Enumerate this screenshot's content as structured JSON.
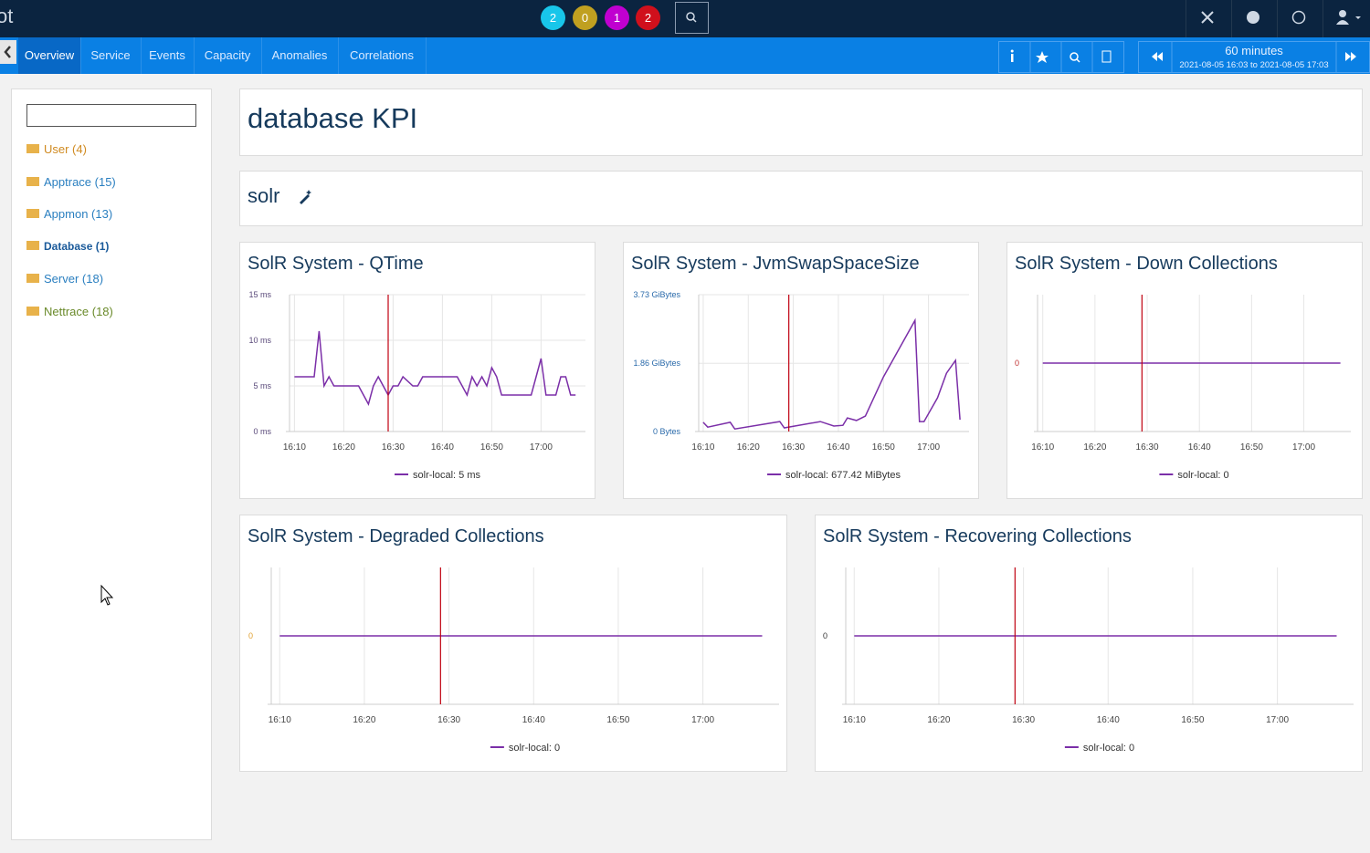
{
  "header": {
    "logo": "ot",
    "badges": [
      "2",
      "0",
      "1",
      "2"
    ]
  },
  "nav": {
    "tabs": [
      "Overview",
      "Service",
      "Events",
      "Capacity",
      "Anomalies",
      "Correlations"
    ],
    "active": 0,
    "time_range": {
      "duration": "60 minutes",
      "span": "2021-08-05 16:03 to 2021-08-05 17:03"
    }
  },
  "sidebar": {
    "items": [
      "User (4)",
      "Apptrace (15)",
      "Appmon (13)",
      "Database (1)",
      "Server (18)",
      "Nettrace (18)"
    ]
  },
  "page": {
    "title": "database KPI",
    "section": "solr"
  },
  "panels": [
    {
      "title": "SolR System - QTime",
      "type": "line",
      "color": "#7b2fa8",
      "tick_color": "#5a4a7a",
      "x": [
        "16:10",
        "16:11",
        "16:12",
        "16:13",
        "16:14",
        "16:15",
        "16:16",
        "16:17",
        "16:18",
        "16:20",
        "16:22",
        "16:23",
        "16:24",
        "16:25",
        "16:26",
        "16:27",
        "16:28",
        "16:29",
        "16:30",
        "16:31",
        "16:32",
        "16:34",
        "16:35",
        "16:36",
        "16:40",
        "16:42",
        "16:43",
        "16:44",
        "16:45",
        "16:46",
        "16:47",
        "16:48",
        "16:49",
        "16:50",
        "16:51",
        "16:52",
        "16:54",
        "16:57",
        "16:58",
        "16:59",
        "17:00",
        "17:01",
        "17:03",
        "17:04",
        "17:05",
        "17:06",
        "17:07"
      ],
      "values": [
        6,
        6,
        6,
        6,
        6,
        11,
        5,
        6,
        5,
        5,
        5,
        5,
        4,
        3,
        5,
        6,
        5,
        4,
        5,
        5,
        6,
        5,
        5,
        6,
        6,
        6,
        6,
        5,
        4,
        6,
        5,
        6,
        5,
        7,
        6,
        4,
        4,
        4,
        4,
        6,
        8,
        4,
        4,
        6,
        6,
        4,
        4
      ],
      "xlim": [
        "16:09",
        "17:09"
      ],
      "ylim": [
        0,
        15
      ],
      "xticks": [
        "16:10",
        "16:20",
        "16:30",
        "16:40",
        "16:50",
        "17:00"
      ],
      "yticks": [
        {
          "value": 0,
          "label": "0 ms"
        },
        {
          "value": 5,
          "label": "5 ms"
        },
        {
          "value": 10,
          "label": "10 ms"
        },
        {
          "value": 15,
          "label": "15 ms"
        }
      ],
      "marker": "16:29",
      "legend": "solr-local: 5 ms"
    },
    {
      "title": "SolR System - JvmSwapSpaceSize",
      "type": "line",
      "color": "#7b2fa8",
      "tick_color": "#2a6aaa",
      "x": [
        "16:10",
        "16:11",
        "16:16",
        "16:17",
        "16:27",
        "16:28",
        "16:36",
        "16:39",
        "16:41",
        "16:42",
        "16:44",
        "16:46",
        "16:50",
        "16:57",
        "16:58",
        "16:59",
        "17:02",
        "17:04",
        "17:06",
        "17:07"
      ],
      "values": [
        0.25,
        0.12,
        0.25,
        0.07,
        0.27,
        0.1,
        0.27,
        0.15,
        0.17,
        0.37,
        0.3,
        0.42,
        1.49,
        3.03,
        0.27,
        0.27,
        0.92,
        1.59,
        1.94,
        0.32
      ],
      "xlim": [
        "16:09",
        "17:09"
      ],
      "ylim": [
        0,
        3.73
      ],
      "xticks": [
        "16:10",
        "16:20",
        "16:30",
        "16:40",
        "16:50",
        "17:00"
      ],
      "yticks": [
        {
          "value": 0,
          "label": "0 Bytes"
        },
        {
          "value": 1.86,
          "label": "1.86 GiBytes"
        },
        {
          "value": 3.73,
          "label": "3.73 GiBytes"
        }
      ],
      "marker": "16:29",
      "legend": "solr-local: 677.42 MiBytes"
    },
    {
      "title": "SolR System - Down Collections",
      "type": "line",
      "color": "#7b2fa8",
      "tick_color": "#c03030",
      "x": [
        "16:10",
        "17:07"
      ],
      "values": [
        0,
        0
      ],
      "xlim": [
        "16:09",
        "17:09"
      ],
      "ylim": [
        -1,
        1
      ],
      "xticks": [
        "16:10",
        "16:20",
        "16:30",
        "16:40",
        "16:50",
        "17:00"
      ],
      "yticks": [
        0
      ],
      "marker": "16:29",
      "legend": "solr-local: 0"
    },
    {
      "title": "SolR System - Degraded Collections",
      "type": "line",
      "color": "#7b2fa8",
      "tick_color": "#e0a030",
      "x": [
        "16:10",
        "17:07"
      ],
      "values": [
        0,
        0
      ],
      "xlim": [
        "16:09",
        "17:09"
      ],
      "ylim": [
        -1,
        1
      ],
      "xticks": [
        "16:10",
        "16:20",
        "16:30",
        "16:40",
        "16:50",
        "17:00"
      ],
      "yticks": [
        0
      ],
      "marker": "16:29",
      "legend": "solr-local: 0"
    },
    {
      "title": "SolR System - Recovering Collections",
      "type": "line",
      "color": "#7b2fa8",
      "tick_color": "#333333",
      "x": [
        "16:10",
        "17:07"
      ],
      "values": [
        0,
        0
      ],
      "xlim": [
        "16:09",
        "17:09"
      ],
      "ylim": [
        -1,
        1
      ],
      "xticks": [
        "16:10",
        "16:20",
        "16:30",
        "16:40",
        "16:50",
        "17:00"
      ],
      "yticks": [
        0
      ],
      "marker": "16:29",
      "legend": "solr-local: 0"
    }
  ]
}
